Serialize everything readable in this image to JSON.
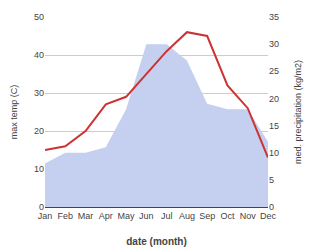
{
  "chart_data": {
    "type": "line",
    "categories": [
      "Jan",
      "Feb",
      "Mar",
      "Apr",
      "May",
      "Jun",
      "Jul",
      "Aug",
      "Sep",
      "Oct",
      "Nov",
      "Dec"
    ],
    "series": [
      {
        "type": "area",
        "color": "#c5d0f0",
        "axis": "y2",
        "values": [
          8,
          10,
          10,
          11,
          18,
          30,
          30,
          27,
          19,
          18,
          18,
          12
        ]
      },
      {
        "type": "line",
        "color": "#cc3333",
        "values": [
          15,
          16,
          20,
          27,
          29,
          35,
          41,
          46,
          45,
          32,
          26,
          13
        ]
      }
    ],
    "xlabel": "date (month)",
    "ylabel": "max temp (C)",
    "y2label": "med. precipitation (kg/m2)",
    "ylim": [
      0,
      50
    ],
    "yticks": [
      0,
      10,
      20,
      30,
      40,
      50
    ],
    "y2lim": [
      0,
      35
    ],
    "y2ticks": [
      0,
      5,
      10,
      15,
      20,
      25,
      30,
      35
    ],
    "grid": true
  }
}
